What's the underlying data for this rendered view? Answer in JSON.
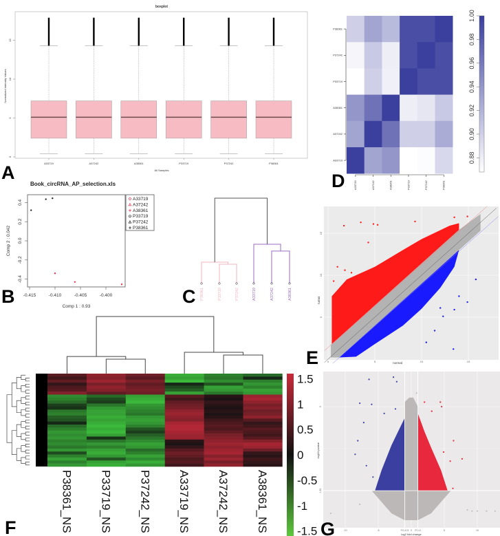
{
  "panel_labels": [
    "A",
    "B",
    "C",
    "D",
    "E",
    "F",
    "G"
  ],
  "chart_data": [
    {
      "panel": "A",
      "type": "box",
      "title": "boxplot",
      "xlabel": "All Samples",
      "ylabel": "Normalized Intensity Values",
      "categories": [
        "A33719",
        "A37242",
        "A38361",
        "P33719",
        "P37242",
        "P38361"
      ],
      "yticks": [
        0,
        5,
        10,
        15
      ],
      "boxes": [
        {
          "whisker_low": 0.4,
          "q1": 2.4,
          "median": 5.1,
          "q3": 7.2,
          "whisker_high": 14.3,
          "outlier_max": 17.9
        },
        {
          "whisker_low": 0.4,
          "q1": 2.4,
          "median": 5.1,
          "q3": 7.2,
          "whisker_high": 14.3,
          "outlier_max": 17.9
        },
        {
          "whisker_low": 0.4,
          "q1": 2.4,
          "median": 5.1,
          "q3": 7.2,
          "whisker_high": 14.3,
          "outlier_max": 17.9
        },
        {
          "whisker_low": 0.4,
          "q1": 2.4,
          "median": 5.1,
          "q3": 7.2,
          "whisker_high": 14.3,
          "outlier_max": 17.9
        },
        {
          "whisker_low": 0.4,
          "q1": 2.4,
          "median": 5.1,
          "q3": 7.2,
          "whisker_high": 14.3,
          "outlier_max": 17.9
        },
        {
          "whisker_low": 0.4,
          "q1": 2.4,
          "median": 5.1,
          "q3": 7.2,
          "whisker_high": 14.3,
          "outlier_max": 17.9
        }
      ],
      "colors": {
        "box": "#f7bcc3",
        "median": "#6b4b4e"
      }
    },
    {
      "panel": "D",
      "type": "heatmap",
      "rows": [
        "P38361",
        "P37242",
        "P33719",
        "A38361",
        "A37242",
        "A33719"
      ],
      "columns": [
        "A33719",
        "A37242",
        "A38361",
        "P33719",
        "P37242",
        "P38361"
      ],
      "values": [
        [
          0.9,
          0.93,
          0.915,
          0.99,
          0.99,
          1.0
        ],
        [
          0.875,
          0.905,
          0.88,
          0.99,
          1.0,
          0.99
        ],
        [
          0.868,
          0.9,
          0.878,
          1.0,
          0.99,
          0.99
        ],
        [
          0.94,
          0.965,
          1.0,
          0.88,
          0.885,
          0.905
        ],
        [
          0.93,
          1.0,
          0.965,
          0.9,
          0.9,
          0.925
        ],
        [
          1.0,
          0.93,
          0.94,
          0.868,
          0.87,
          0.895
        ]
      ],
      "colorbar": {
        "ticks": [
          "0.88",
          "0.90",
          "0.92",
          "0.94",
          "0.96",
          "0.98",
          "1.00"
        ],
        "range": [
          0.868,
          1.0
        ],
        "low": "#ffffff",
        "high": "#3b3f9d"
      }
    },
    {
      "panel": "B",
      "type": "scatter",
      "title": "Book_circRNA_AP_selection.xls",
      "xlabel": "Comp 1 : 0.93",
      "ylabel": "Comp 2 : 0.042",
      "xticks": [
        "-0.415",
        "-0.410",
        "-0.405",
        "-0.400"
      ],
      "yticks": [
        "-0.4",
        "-0.2",
        "0.0",
        "0.2",
        "0.4"
      ],
      "legend": "right",
      "series": [
        {
          "name": "A33719",
          "marker": "circle",
          "color": "#e8384f",
          "x": -0.41,
          "y": -0.34
        },
        {
          "name": "A37242",
          "marker": "triangle",
          "color": "#e8384f",
          "x": -0.4061,
          "y": -0.43
        },
        {
          "name": "A38361",
          "marker": "plus",
          "color": "#e8384f",
          "x": -0.3969,
          "y": -0.455
        },
        {
          "name": "P33719",
          "marker": "circle",
          "color": "#222222",
          "x": -0.4147,
          "y": 0.32
        },
        {
          "name": "P37242",
          "marker": "triangle",
          "color": "#222222",
          "x": -0.4118,
          "y": 0.435
        },
        {
          "name": "P38361",
          "marker": "plus",
          "color": "#222222",
          "x": -0.4105,
          "y": 0.445
        }
      ]
    },
    {
      "panel": "C",
      "type": "dendrogram",
      "leaves": [
        "P38361",
        "P33719",
        "P37242",
        "A33719",
        "A37242",
        "A38361"
      ],
      "merges": [
        [
          1,
          2,
          0.226
        ],
        [
          0,
          "m0",
          0.25
        ],
        [
          4,
          5,
          0.38
        ],
        [
          3,
          "m2",
          0.46
        ],
        [
          "m1",
          "m3",
          1.0
        ]
      ],
      "colors": {
        "group1": "#f2b6bf",
        "group2": "#9a6cc0",
        "root": "#555555"
      }
    },
    {
      "panel": "E",
      "type": "scatter",
      "xlabel": "normal",
      "ylabel": "tumor",
      "xticks": [
        0,
        5,
        10,
        15
      ],
      "yticks": [
        5,
        10,
        15
      ],
      "xlim": [
        -0.45,
        18.2
      ],
      "ylim": [
        0,
        18.2
      ],
      "regions": [
        {
          "name": "up",
          "color": "#ff1a1a",
          "polygon": [
            [
              0.4,
              1.8
            ],
            [
              0.4,
              7.5
            ],
            [
              2,
              9.5
            ],
            [
              5,
              11
            ],
            [
              8,
              13
            ],
            [
              10,
              14.3
            ],
            [
              13,
              15.9
            ],
            [
              14,
              16.2
            ],
            [
              14,
              15.4
            ]
          ]
        },
        {
          "name": "unchanged",
          "color": "#b3b3b3",
          "polygon": [
            [
              0.3,
              0.2
            ],
            [
              0.3,
              1.7
            ],
            [
              14,
              15.4
            ],
            [
              16.3,
              17.3
            ],
            [
              16.3,
              15.3
            ],
            [
              1.2,
              0.2
            ]
          ]
        },
        {
          "name": "down",
          "color": "#1a1aff",
          "polygon": [
            [
              1.2,
              0.2
            ],
            [
              14,
              13
            ],
            [
              13.5,
              11
            ],
            [
              12,
              8.5
            ],
            [
              10,
              6
            ],
            [
              8,
              4
            ],
            [
              5,
              1.8
            ],
            [
              3,
              0.3
            ]
          ]
        }
      ],
      "points_up": [
        [
          1.7,
          15.9
        ],
        [
          3.5,
          16.3
        ],
        [
          4.85,
          16.1
        ],
        [
          5.3,
          16.0
        ],
        [
          9.3,
          16.4
        ],
        [
          4.3,
          13.9
        ],
        [
          1.0,
          11.0
        ],
        [
          0.6,
          9.3
        ],
        [
          1.8,
          10.6
        ],
        [
          2.5,
          10.3
        ],
        [
          14.9,
          17.0
        ],
        [
          13.5,
          16.9
        ]
      ],
      "points_down": [
        [
          15.8,
          9.5
        ],
        [
          13.4,
          1.2
        ],
        [
          14.9,
          6.8
        ],
        [
          12,
          6.1
        ],
        [
          13.5,
          5.9
        ],
        [
          14,
          7.5
        ],
        [
          12.3,
          5.1
        ],
        [
          10.5,
          2.0
        ],
        [
          11.4,
          3.4
        ]
      ],
      "colors": {
        "diagonal": "#555555",
        "upper_line": "#f08080",
        "lower_line": "#8080f0",
        "background": "#ebebeb"
      }
    },
    {
      "panel": "F",
      "type": "heatmap",
      "columns": [
        "P38361_NS",
        "P33719_NS",
        "P37242_NS",
        "A33719_NS",
        "A37242_NS",
        "A38361_NS"
      ],
      "col_merges": [
        [
          1,
          2,
          0.253
        ],
        [
          0,
          "m0",
          0.3
        ],
        [
          4,
          5,
          0.325
        ],
        [
          3,
          "m2",
          0.373
        ],
        [
          "m1",
          "m3",
          1.0
        ]
      ],
      "values": [
        [
          0.6,
          1.1,
          0.8,
          -1.4,
          -1.0,
          -0.8
        ],
        [
          0.4,
          1.0,
          0.6,
          -1.3,
          -0.9,
          -0.2
        ],
        [
          0.7,
          1.2,
          0.9,
          -1.5,
          -1.1,
          -1.0
        ],
        [
          0.3,
          0.9,
          0.7,
          -0.2,
          -0.6,
          -1.2
        ],
        [
          0.5,
          1.1,
          0.8,
          -0.5,
          -1.3,
          -1.0
        ],
        [
          0.6,
          1.0,
          0.9,
          -0.7,
          -1.2,
          -1.3
        ],
        [
          1.0,
          0.7,
          0.8,
          -1.3,
          -0.9,
          -1.2
        ],
        [
          -1.1,
          -0.8,
          -1.3,
          0.6,
          0.2,
          1.2
        ],
        [
          -1.0,
          -0.5,
          -1.4,
          0.4,
          0.1,
          1.3
        ],
        [
          -0.8,
          -0.4,
          -1.5,
          0.7,
          0.3,
          1.1
        ],
        [
          -0.4,
          -0.9,
          -1.2,
          0.8,
          0.2,
          0.9
        ],
        [
          -0.3,
          -1.2,
          -1.1,
          0.9,
          0.1,
          1.0
        ],
        [
          -0.9,
          -1.3,
          -1.0,
          1.1,
          0.2,
          0.8
        ],
        [
          -1.0,
          -1.3,
          -0.9,
          1.2,
          0.1,
          0.9
        ],
        [
          -0.7,
          -1.4,
          -1.2,
          1.1,
          0.2,
          1.1
        ],
        [
          -0.6,
          -1.3,
          -1.3,
          1.0,
          0.4,
          0.6
        ],
        [
          -0.2,
          -1.4,
          -1.2,
          1.3,
          0.5,
          0.3
        ],
        [
          -0.8,
          -1.5,
          -1.0,
          1.4,
          0.6,
          0.4
        ],
        [
          -1.0,
          -1.4,
          -0.6,
          1.4,
          0.5,
          0.6
        ],
        [
          -1.2,
          -1.5,
          -0.4,
          1.3,
          0.7,
          0.5
        ],
        [
          -1.1,
          -1.3,
          -0.7,
          1.2,
          0.9,
          0.4
        ],
        [
          -1.2,
          -0.3,
          -0.9,
          1.2,
          1.0,
          0.6
        ],
        [
          -1.0,
          -0.9,
          -1.1,
          0.2,
          1.1,
          1.0
        ],
        [
          -1.1,
          -1.2,
          -1.3,
          0.1,
          1.2,
          1.3
        ],
        [
          -0.9,
          -1.0,
          -1.2,
          0.3,
          1.1,
          1.2
        ],
        [
          -1.2,
          -1.3,
          -0.8,
          0.6,
          1.2,
          0.8
        ],
        [
          -0.5,
          -1.4,
          -1.0,
          0.8,
          1.3,
          0.3
        ],
        [
          -1.0,
          -1.2,
          -1.3,
          0.7,
          1.0,
          0.2
        ],
        [
          -1.3,
          -0.6,
          -1.1,
          0.5,
          1.2,
          0.4
        ],
        [
          -1.0,
          -1.3,
          -1.4,
          0.6,
          0.9,
          0.3
        ],
        [
          -1.2,
          -1.4,
          -1.2,
          0.4,
          1.1,
          0.2
        ]
      ],
      "colorbar": {
        "ticks": [
          "1.5",
          "1",
          "0.5",
          "0",
          "-0.5",
          "-1",
          "-1.5"
        ],
        "tick_values": [
          1.5,
          1,
          0.5,
          0,
          -0.5,
          -1,
          -1.5
        ],
        "range": [
          -1.6,
          1.6
        ],
        "low": "#3ec43e",
        "mid": "#111111",
        "high": "#c92a3a"
      }
    },
    {
      "panel": "G",
      "type": "scatter",
      "xlabel": "log2 fold change",
      "ylabel": "-log10 pvalue",
      "xticks": [
        {
          "v": -10,
          "label": "-10"
        },
        {
          "v": -5,
          "label": "-5"
        },
        {
          "v": -1,
          "label": "FC=0.5"
        },
        {
          "v": 0,
          "label": "0"
        },
        {
          "v": 1,
          "label": "FC=2"
        },
        {
          "v": 5,
          "label": "5"
        },
        {
          "v": 10,
          "label": "10"
        }
      ],
      "yticks": [
        {
          "v": 1.3,
          "label": "1.30"
        },
        {
          "v": 5,
          "label": "5"
        }
      ],
      "xlim": [
        -13.3,
        13.4
      ],
      "ylim": [
        -0.3,
        6.55
      ],
      "regions": [
        {
          "name": "not-significant",
          "color": "#bdb8b8",
          "polygon": [
            [
              -6,
              1.3
            ],
            [
              6,
              1.3
            ],
            [
              3,
              0.3
            ],
            [
              1,
              0
            ],
            [
              -1,
              0
            ],
            [
              -3,
              0.3
            ]
          ]
        },
        {
          "name": "center",
          "color": "#bdb8b8",
          "polygon": [
            [
              -1,
              1.3
            ],
            [
              -1,
              5.2
            ],
            [
              -0.3,
              5.4
            ],
            [
              0.3,
              5.4
            ],
            [
              1,
              5.0
            ],
            [
              1,
              1.3
            ]
          ]
        },
        {
          "name": "down",
          "color": "#3a3fa0",
          "polygon": [
            [
              -1,
              1.3
            ],
            [
              -1,
              4.5
            ],
            [
              -2,
              3.9
            ],
            [
              -3,
              3.3
            ],
            [
              -4.5,
              2.2
            ],
            [
              -5.5,
              1.3
            ]
          ]
        },
        {
          "name": "up",
          "color": "#e8283c",
          "polygon": [
            [
              1,
              1.3
            ],
            [
              1,
              4.7
            ],
            [
              2,
              3.9
            ],
            [
              3,
              3.2
            ],
            [
              4.5,
              2.2
            ],
            [
              5.5,
              1.3
            ]
          ]
        }
      ],
      "points_down": [
        [
          -7.8,
          5.15
        ],
        [
          -6.0,
          5.1
        ],
        [
          -6.4,
          6.2
        ],
        [
          -7.2,
          4.3
        ],
        [
          -8.5,
          2.9
        ],
        [
          -8.1,
          3.5
        ],
        [
          -4.1,
          4.7
        ],
        [
          -2.4,
          4.9
        ],
        [
          -2.7,
          6.3
        ],
        [
          -2.2,
          6.1
        ],
        [
          -6.8,
          2.4
        ],
        [
          -5.8,
          1.9
        ]
      ],
      "points_up": [
        [
          2.0,
          5.2
        ],
        [
          4.4,
          5.2
        ],
        [
          4.6,
          5.0
        ],
        [
          3.1,
          4.8
        ],
        [
          7.7,
          2.7
        ],
        [
          6.4,
          3.5
        ],
        [
          6.3,
          1.4
        ],
        [
          5.9,
          2.6
        ],
        [
          4.9,
          3.0
        ]
      ],
      "points_ns": [
        [
          -12.2,
          0.3
        ],
        [
          8.5,
          0.45
        ],
        [
          10,
          0.4
        ],
        [
          12.7,
          0.4
        ],
        [
          0.8,
          5.6
        ],
        [
          -7.8,
          0.7
        ],
        [
          9.2,
          0.4
        ],
        [
          11.4,
          0.4
        ]
      ],
      "colors": {
        "background": "#ebe9e9",
        "grid": "#ffffff"
      }
    }
  ]
}
